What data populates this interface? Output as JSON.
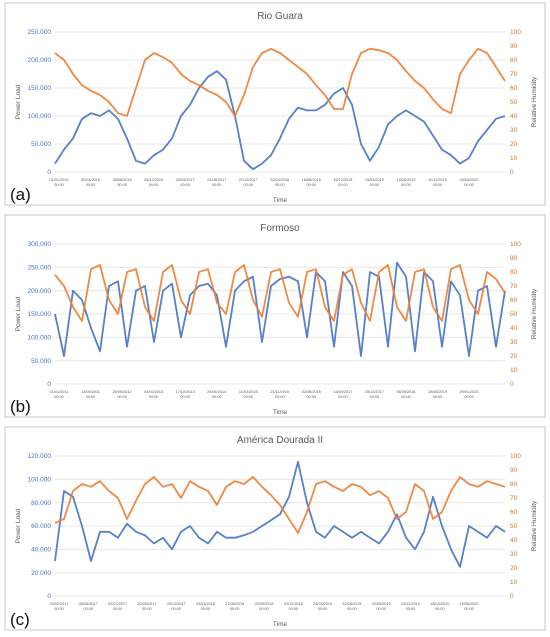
{
  "chart_data": [
    {
      "type": "line",
      "panel_label": "(a)",
      "title": "Rio Guara",
      "xlabel": "Time",
      "ylabel": "Power Load",
      "y2label": "Relative Humidity",
      "ylim": [
        0,
        250000
      ],
      "y2lim": [
        0,
        100
      ],
      "yticks": [
        "0",
        "50.000",
        "100.000",
        "150.000",
        "200.000",
        "250.000"
      ],
      "y2ticks": [
        "0",
        "10",
        "20",
        "30",
        "40",
        "50",
        "60",
        "70",
        "80",
        "90",
        "100"
      ],
      "xticks": [
        [
          "01/01/2016",
          "00:00"
        ],
        [
          "30/04/2016",
          "00:00"
        ],
        [
          "28/08/2016",
          "00:00"
        ],
        [
          "26/12/2016",
          "00:00"
        ],
        [
          "25/04/2017",
          "00:00"
        ],
        [
          "23/08/2017",
          "00:00"
        ],
        [
          "21/12/2017",
          "00:00"
        ],
        [
          "20/04/2018",
          "00:00"
        ],
        [
          "18/08/2018",
          "00:00"
        ],
        [
          "16/12/2018",
          "00:00"
        ],
        [
          "15/04/2019",
          "00:00"
        ],
        [
          "13/08/2019",
          "00:00"
        ],
        [
          "11/12/2019",
          "00:00"
        ],
        [
          "09/04/2020",
          "00:00"
        ]
      ],
      "series": [
        {
          "role": "power_load",
          "axis": "left",
          "color": "#4472c4",
          "x": [
            0,
            0.02,
            0.04,
            0.06,
            0.08,
            0.1,
            0.12,
            0.14,
            0.16,
            0.18,
            0.2,
            0.22,
            0.24,
            0.26,
            0.28,
            0.3,
            0.32,
            0.34,
            0.36,
            0.38,
            0.4,
            0.42,
            0.44,
            0.46,
            0.48,
            0.5,
            0.52,
            0.54,
            0.56,
            0.58,
            0.6,
            0.62,
            0.64,
            0.66,
            0.68,
            0.7,
            0.72,
            0.74,
            0.76,
            0.78,
            0.8,
            0.82,
            0.84,
            0.86,
            0.88,
            0.9,
            0.92,
            0.94,
            0.96,
            0.98,
            1
          ],
          "values": [
            15000,
            40000,
            60000,
            95000,
            105000,
            100000,
            110000,
            95000,
            60000,
            20000,
            15000,
            30000,
            40000,
            60000,
            100000,
            120000,
            150000,
            170000,
            180000,
            165000,
            100000,
            20000,
            5000,
            15000,
            30000,
            60000,
            95000,
            115000,
            110000,
            110000,
            120000,
            140000,
            150000,
            120000,
            50000,
            20000,
            45000,
            85000,
            100000,
            110000,
            100000,
            90000,
            65000,
            40000,
            30000,
            15000,
            25000,
            55000,
            75000,
            95000,
            100000
          ]
        },
        {
          "role": "relative_humidity",
          "axis": "right",
          "color": "#ed7d31",
          "x": [
            0,
            0.02,
            0.04,
            0.06,
            0.08,
            0.1,
            0.12,
            0.14,
            0.16,
            0.18,
            0.2,
            0.22,
            0.24,
            0.26,
            0.28,
            0.3,
            0.32,
            0.34,
            0.36,
            0.38,
            0.4,
            0.42,
            0.44,
            0.46,
            0.48,
            0.5,
            0.52,
            0.54,
            0.56,
            0.58,
            0.6,
            0.62,
            0.64,
            0.66,
            0.68,
            0.7,
            0.72,
            0.74,
            0.76,
            0.78,
            0.8,
            0.82,
            0.84,
            0.86,
            0.88,
            0.9,
            0.92,
            0.94,
            0.96,
            0.98,
            1
          ],
          "values": [
            85,
            80,
            70,
            62,
            58,
            55,
            50,
            42,
            40,
            60,
            80,
            85,
            82,
            78,
            70,
            65,
            62,
            58,
            55,
            50,
            40,
            55,
            75,
            85,
            88,
            85,
            80,
            75,
            70,
            62,
            55,
            45,
            45,
            70,
            85,
            88,
            87,
            85,
            80,
            72,
            65,
            60,
            52,
            45,
            42,
            70,
            80,
            88,
            85,
            75,
            65
          ]
        }
      ]
    },
    {
      "type": "line",
      "panel_label": "(b)",
      "title": "Formoso",
      "xlabel": "Time",
      "ylabel": "Power Load",
      "y2label": "Relative Humidity",
      "ylim": [
        0,
        300000
      ],
      "y2lim": [
        0,
        100
      ],
      "yticks": [
        "0",
        "50.000",
        "100.000",
        "150.000",
        "200.000",
        "250.000",
        "300.000"
      ],
      "y2ticks": [
        "0",
        "10",
        "20",
        "30",
        "40",
        "50",
        "60",
        "70",
        "80",
        "90",
        "100"
      ],
      "xticks": [
        [
          "01/01/2011",
          "00:00"
        ],
        [
          "13/09/2011",
          "00:00"
        ],
        [
          "25/05/2012",
          "00:00"
        ],
        [
          "04/02/2013",
          "00:00"
        ],
        [
          "17/10/2013",
          "00:00"
        ],
        [
          "29/06/2014",
          "00:00"
        ],
        [
          "11/03/2015",
          "00:00"
        ],
        [
          "21/11/2015",
          "00:00"
        ],
        [
          "02/08/2016",
          "00:00"
        ],
        [
          "14/04/2017",
          "00:00"
        ],
        [
          "25/12/2017",
          "00:00"
        ],
        [
          "06/09/2018",
          "00:00"
        ],
        [
          "19/05/2019",
          "00:00"
        ],
        [
          "29/01/2020",
          "00:00"
        ]
      ],
      "series": [
        {
          "role": "power_load",
          "axis": "left",
          "color": "#4472c4",
          "x": [
            0,
            0.02,
            0.04,
            0.06,
            0.08,
            0.1,
            0.12,
            0.14,
            0.16,
            0.18,
            0.2,
            0.22,
            0.24,
            0.26,
            0.28,
            0.3,
            0.32,
            0.34,
            0.36,
            0.38,
            0.4,
            0.42,
            0.44,
            0.46,
            0.48,
            0.5,
            0.52,
            0.54,
            0.56,
            0.58,
            0.6,
            0.62,
            0.64,
            0.66,
            0.68,
            0.7,
            0.72,
            0.74,
            0.76,
            0.78,
            0.8,
            0.82,
            0.84,
            0.86,
            0.88,
            0.9,
            0.92,
            0.94,
            0.96,
            0.98,
            1
          ],
          "values": [
            150000,
            60000,
            200000,
            180000,
            120000,
            70000,
            210000,
            220000,
            80000,
            200000,
            210000,
            90000,
            200000,
            215000,
            100000,
            190000,
            210000,
            215000,
            190000,
            80000,
            200000,
            220000,
            230000,
            90000,
            210000,
            225000,
            230000,
            220000,
            100000,
            240000,
            220000,
            80000,
            240000,
            210000,
            60000,
            240000,
            230000,
            80000,
            260000,
            230000,
            70000,
            240000,
            220000,
            80000,
            220000,
            190000,
            60000,
            200000,
            210000,
            80000,
            200000
          ]
        },
        {
          "role": "relative_humidity",
          "axis": "right",
          "color": "#ed7d31",
          "x": [
            0,
            0.02,
            0.04,
            0.06,
            0.08,
            0.1,
            0.12,
            0.14,
            0.16,
            0.18,
            0.2,
            0.22,
            0.24,
            0.26,
            0.28,
            0.3,
            0.32,
            0.34,
            0.36,
            0.38,
            0.4,
            0.42,
            0.44,
            0.46,
            0.48,
            0.5,
            0.52,
            0.54,
            0.56,
            0.58,
            0.6,
            0.62,
            0.64,
            0.66,
            0.68,
            0.7,
            0.72,
            0.74,
            0.76,
            0.78,
            0.8,
            0.82,
            0.84,
            0.86,
            0.88,
            0.9,
            0.92,
            0.94,
            0.96,
            0.98,
            1
          ],
          "values": [
            78,
            70,
            55,
            45,
            82,
            85,
            60,
            50,
            80,
            82,
            55,
            45,
            80,
            85,
            60,
            50,
            80,
            82,
            58,
            50,
            80,
            85,
            60,
            48,
            80,
            82,
            58,
            48,
            80,
            82,
            55,
            45,
            78,
            82,
            58,
            45,
            80,
            85,
            55,
            45,
            80,
            82,
            55,
            45,
            82,
            85,
            60,
            50,
            80,
            75,
            65
          ]
        }
      ]
    },
    {
      "type": "line",
      "panel_label": "(c)",
      "title": "América Dourada II",
      "xlabel": "Time",
      "ylabel": "Power Load",
      "y2label": "Relative Humidity",
      "ylim": [
        0,
        120000
      ],
      "y2lim": [
        0,
        100
      ],
      "yticks": [
        "0",
        "20.000",
        "40.000",
        "60.000",
        "80.000",
        "100.000",
        "120.000"
      ],
      "y2ticks": [
        "0",
        "10",
        "20",
        "30",
        "40",
        "50",
        "60",
        "70",
        "80",
        "90",
        "100"
      ],
      "xticks": [
        [
          "03/02/2017",
          "00:00"
        ],
        [
          "06/06/2017",
          "00:00"
        ],
        [
          "02/07/2017",
          "00:00"
        ],
        [
          "30/09/2017",
          "00:00"
        ],
        [
          "29/12/2017",
          "00:00"
        ],
        [
          "29/03/2018",
          "00:00"
        ],
        [
          "27/06/2018",
          "00:00"
        ],
        [
          "25/09/2018",
          "00:00"
        ],
        [
          "24/12/2018",
          "00:00"
        ],
        [
          "24/03/2019",
          "00:00"
        ],
        [
          "22/06/2019",
          "00:00"
        ],
        [
          "20/09/2019",
          "00:00"
        ],
        [
          "19/12/2019",
          "00:00"
        ],
        [
          "18/03/2020",
          "00:00"
        ],
        [
          "16/06/2020",
          "00:00"
        ]
      ],
      "series": [
        {
          "role": "power_load",
          "axis": "left",
          "color": "#4472c4",
          "x": [
            0,
            0.02,
            0.04,
            0.06,
            0.08,
            0.1,
            0.12,
            0.14,
            0.16,
            0.18,
            0.2,
            0.22,
            0.24,
            0.26,
            0.28,
            0.3,
            0.32,
            0.34,
            0.36,
            0.38,
            0.4,
            0.42,
            0.44,
            0.46,
            0.48,
            0.5,
            0.52,
            0.54,
            0.56,
            0.58,
            0.6,
            0.62,
            0.64,
            0.66,
            0.68,
            0.7,
            0.72,
            0.74,
            0.76,
            0.78,
            0.8,
            0.82,
            0.84,
            0.86,
            0.88,
            0.9,
            0.92,
            0.94,
            0.96,
            0.98,
            1
          ],
          "values": [
            30000,
            90000,
            85000,
            60000,
            30000,
            55000,
            55000,
            50000,
            62000,
            55000,
            52000,
            45000,
            50000,
            40000,
            55000,
            60000,
            50000,
            45000,
            55000,
            50000,
            50000,
            52000,
            55000,
            60000,
            65000,
            70000,
            85000,
            115000,
            80000,
            55000,
            50000,
            60000,
            55000,
            50000,
            55000,
            50000,
            45000,
            55000,
            70000,
            50000,
            40000,
            55000,
            85000,
            60000,
            40000,
            25000,
            60000,
            55000,
            50000,
            60000,
            55000
          ]
        },
        {
          "role": "relative_humidity",
          "axis": "right",
          "color": "#ed7d31",
          "x": [
            0,
            0.02,
            0.04,
            0.06,
            0.08,
            0.1,
            0.12,
            0.14,
            0.16,
            0.18,
            0.2,
            0.22,
            0.24,
            0.26,
            0.28,
            0.3,
            0.32,
            0.34,
            0.36,
            0.38,
            0.4,
            0.42,
            0.44,
            0.46,
            0.48,
            0.5,
            0.52,
            0.54,
            0.56,
            0.58,
            0.6,
            0.62,
            0.64,
            0.66,
            0.68,
            0.7,
            0.72,
            0.74,
            0.76,
            0.78,
            0.8,
            0.82,
            0.84,
            0.86,
            0.88,
            0.9,
            0.92,
            0.94,
            0.96,
            0.98,
            1
          ],
          "values": [
            52,
            55,
            75,
            80,
            78,
            82,
            75,
            70,
            55,
            68,
            80,
            85,
            78,
            80,
            70,
            82,
            78,
            75,
            65,
            78,
            82,
            80,
            85,
            78,
            72,
            65,
            55,
            45,
            60,
            80,
            82,
            78,
            75,
            80,
            78,
            72,
            75,
            70,
            55,
            60,
            80,
            75,
            55,
            60,
            75,
            85,
            80,
            78,
            82,
            80,
            78
          ]
        }
      ]
    }
  ]
}
